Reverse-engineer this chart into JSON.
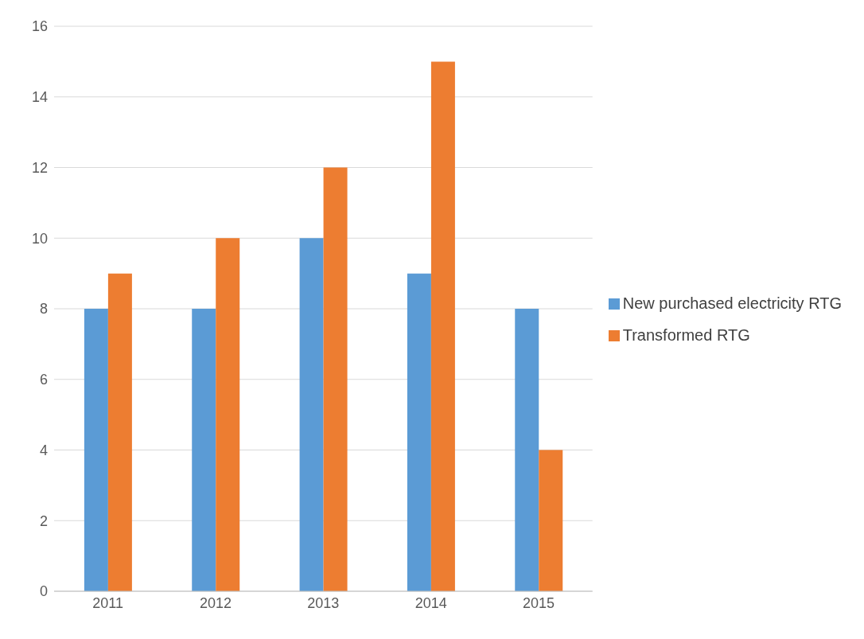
{
  "chart_data": {
    "type": "bar",
    "categories": [
      "2011",
      "2012",
      "2013",
      "2014",
      "2015"
    ],
    "series": [
      {
        "name": "New purchased electricity RTG",
        "color": "#5b9bd5",
        "values": [
          8,
          8,
          10,
          9,
          8
        ]
      },
      {
        "name": "Transformed RTG",
        "color": "#ed7d31",
        "values": [
          9,
          10,
          12,
          15,
          4
        ]
      }
    ],
    "ylim": [
      0,
      16
    ],
    "yticks": [
      0,
      2,
      4,
      6,
      8,
      10,
      12,
      14,
      16
    ],
    "grid": "y",
    "legend": "right"
  }
}
